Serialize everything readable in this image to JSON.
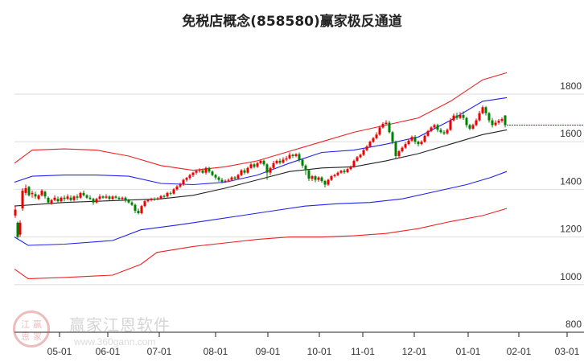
{
  "title": "免税店概念(858580)赢家极反通道",
  "watermark": {
    "brand": "赢家江恩软件",
    "url": "www.360gann.com",
    "logo_chars": [
      "江",
      "赢",
      "恩",
      "家"
    ]
  },
  "colors": {
    "up": "#ee0000",
    "down": "#008000",
    "outer_band": "#ee2222",
    "inner_band": "#2222ee",
    "mid_line": "#222222",
    "grid": "#dddddd",
    "last_price_line": "#008000"
  },
  "chart_data": {
    "type": "candlestick",
    "title": "免税店概念(858580)赢家极反通道",
    "y_axis": {
      "position": "right",
      "ticks": [
        800,
        1000,
        1200,
        1400,
        1600,
        1800
      ],
      "range": [
        800,
        1900
      ]
    },
    "x_axis": {
      "ticks": [
        "05-01",
        "06-01",
        "07-01",
        "08-01",
        "09-01",
        "10-01",
        "11-01",
        "12-01",
        "01-01",
        "02-01",
        "03-01"
      ]
    },
    "grid": true,
    "series": [
      {
        "name": "outer_upper",
        "color": "red",
        "points": [
          [
            18,
            1510
          ],
          [
            40,
            1565
          ],
          [
            80,
            1570
          ],
          [
            120,
            1565
          ],
          [
            160,
            1540
          ],
          [
            200,
            1500
          ],
          [
            240,
            1480
          ],
          [
            280,
            1495
          ],
          [
            320,
            1520
          ],
          [
            360,
            1560
          ],
          [
            400,
            1600
          ],
          [
            440,
            1640
          ],
          [
            480,
            1670
          ],
          [
            520,
            1700
          ],
          [
            560,
            1770
          ],
          [
            600,
            1860
          ],
          [
            630,
            1890
          ]
        ]
      },
      {
        "name": "inner_upper",
        "color": "blue",
        "points": [
          [
            18,
            1430
          ],
          [
            40,
            1455
          ],
          [
            80,
            1460
          ],
          [
            120,
            1460
          ],
          [
            160,
            1455
          ],
          [
            200,
            1425
          ],
          [
            240,
            1420
          ],
          [
            280,
            1430
          ],
          [
            320,
            1460
          ],
          [
            360,
            1510
          ],
          [
            400,
            1555
          ],
          [
            440,
            1565
          ],
          [
            480,
            1590
          ],
          [
            520,
            1620
          ],
          [
            560,
            1690
          ],
          [
            600,
            1770
          ],
          [
            630,
            1785
          ]
        ]
      },
      {
        "name": "middle",
        "color": "black",
        "points": [
          [
            18,
            1330
          ],
          [
            40,
            1335
          ],
          [
            80,
            1345
          ],
          [
            120,
            1350
          ],
          [
            160,
            1355
          ],
          [
            200,
            1360
          ],
          [
            240,
            1375
          ],
          [
            280,
            1405
          ],
          [
            320,
            1440
          ],
          [
            360,
            1475
          ],
          [
            400,
            1490
          ],
          [
            440,
            1495
          ],
          [
            480,
            1520
          ],
          [
            520,
            1550
          ],
          [
            560,
            1590
          ],
          [
            600,
            1630
          ],
          [
            630,
            1650
          ]
        ]
      },
      {
        "name": "inner_lower",
        "color": "blue",
        "points": [
          [
            18,
            1200
          ],
          [
            35,
            1165
          ],
          [
            80,
            1170
          ],
          [
            140,
            1185
          ],
          [
            175,
            1230
          ],
          [
            220,
            1250
          ],
          [
            260,
            1270
          ],
          [
            300,
            1290
          ],
          [
            340,
            1310
          ],
          [
            380,
            1330
          ],
          [
            420,
            1340
          ],
          [
            460,
            1345
          ],
          [
            500,
            1360
          ],
          [
            540,
            1390
          ],
          [
            580,
            1420
          ],
          [
            610,
            1450
          ],
          [
            630,
            1475
          ]
        ]
      },
      {
        "name": "outer_lower",
        "color": "red",
        "points": [
          [
            18,
            1065
          ],
          [
            35,
            1025
          ],
          [
            80,
            1030
          ],
          [
            140,
            1040
          ],
          [
            175,
            1085
          ],
          [
            195,
            1135
          ],
          [
            240,
            1160
          ],
          [
            280,
            1175
          ],
          [
            320,
            1190
          ],
          [
            360,
            1200
          ],
          [
            400,
            1200
          ],
          [
            440,
            1205
          ],
          [
            480,
            1215
          ],
          [
            520,
            1235
          ],
          [
            560,
            1265
          ],
          [
            600,
            1290
          ],
          [
            630,
            1320
          ]
        ]
      }
    ],
    "candles": [
      [
        19,
        1290,
        1315,
        1280,
        1330
      ],
      [
        22,
        1260,
        1200,
        1190,
        1265
      ],
      [
        25,
        1210,
        1260,
        1200,
        1270
      ],
      [
        28,
        1320,
        1395,
        1310,
        1405
      ],
      [
        32,
        1385,
        1405,
        1375,
        1420
      ],
      [
        36,
        1410,
        1375,
        1370,
        1415
      ],
      [
        40,
        1380,
        1385,
        1365,
        1395
      ],
      [
        44,
        1380,
        1370,
        1360,
        1390
      ],
      [
        48,
        1360,
        1375,
        1355,
        1380
      ],
      [
        52,
        1375,
        1395,
        1370,
        1400
      ],
      [
        56,
        1390,
        1370,
        1360,
        1395
      ],
      [
        60,
        1365,
        1345,
        1340,
        1370
      ],
      [
        64,
        1340,
        1355,
        1335,
        1360
      ],
      [
        68,
        1355,
        1365,
        1350,
        1375
      ],
      [
        72,
        1360,
        1350,
        1345,
        1370
      ],
      [
        76,
        1350,
        1365,
        1345,
        1370
      ],
      [
        80,
        1365,
        1360,
        1350,
        1375
      ],
      [
        84,
        1360,
        1370,
        1355,
        1380
      ],
      [
        88,
        1365,
        1355,
        1350,
        1375
      ],
      [
        92,
        1355,
        1370,
        1350,
        1375
      ],
      [
        96,
        1370,
        1365,
        1355,
        1380
      ],
      [
        100,
        1365,
        1385,
        1360,
        1390
      ],
      [
        104,
        1385,
        1375,
        1370,
        1395
      ],
      [
        108,
        1375,
        1365,
        1360,
        1380
      ],
      [
        112,
        1365,
        1360,
        1355,
        1375
      ],
      [
        116,
        1360,
        1345,
        1335,
        1365
      ],
      [
        120,
        1345,
        1360,
        1340,
        1365
      ],
      [
        124,
        1360,
        1370,
        1355,
        1380
      ],
      [
        128,
        1370,
        1365,
        1360,
        1375
      ],
      [
        132,
        1365,
        1370,
        1360,
        1380
      ],
      [
        136,
        1370,
        1360,
        1355,
        1375
      ],
      [
        140,
        1360,
        1370,
        1355,
        1375
      ],
      [
        144,
        1370,
        1365,
        1360,
        1375
      ],
      [
        148,
        1365,
        1360,
        1355,
        1370
      ],
      [
        152,
        1360,
        1365,
        1355,
        1370
      ],
      [
        156,
        1365,
        1355,
        1345,
        1370
      ],
      [
        160,
        1355,
        1345,
        1340,
        1360
      ],
      [
        164,
        1345,
        1335,
        1330,
        1350
      ],
      [
        168,
        1335,
        1310,
        1300,
        1340
      ],
      [
        172,
        1310,
        1300,
        1295,
        1320
      ],
      [
        176,
        1300,
        1330,
        1295,
        1335
      ],
      [
        180,
        1330,
        1350,
        1325,
        1355
      ],
      [
        184,
        1350,
        1355,
        1345,
        1360
      ],
      [
        188,
        1355,
        1360,
        1350,
        1365
      ],
      [
        192,
        1360,
        1358,
        1352,
        1366
      ],
      [
        196,
        1358,
        1362,
        1354,
        1368
      ],
      [
        200,
        1362,
        1372,
        1358,
        1376
      ],
      [
        204,
        1372,
        1370,
        1362,
        1378
      ],
      [
        208,
        1370,
        1385,
        1366,
        1390
      ],
      [
        212,
        1385,
        1382,
        1375,
        1392
      ],
      [
        216,
        1382,
        1400,
        1378,
        1405
      ],
      [
        220,
        1400,
        1412,
        1395,
        1418
      ],
      [
        224,
        1412,
        1420,
        1405,
        1428
      ],
      [
        228,
        1420,
        1440,
        1415,
        1445
      ],
      [
        232,
        1440,
        1448,
        1432,
        1452
      ],
      [
        236,
        1448,
        1460,
        1440,
        1465
      ],
      [
        240,
        1460,
        1470,
        1452,
        1474
      ],
      [
        244,
        1470,
        1478,
        1462,
        1482
      ],
      [
        248,
        1478,
        1480,
        1470,
        1488
      ],
      [
        252,
        1480,
        1470,
        1465,
        1488
      ],
      [
        256,
        1470,
        1490,
        1462,
        1495
      ],
      [
        260,
        1490,
        1475,
        1468,
        1495
      ],
      [
        264,
        1475,
        1460,
        1455,
        1480
      ],
      [
        268,
        1460,
        1450,
        1440,
        1465
      ],
      [
        272,
        1450,
        1440,
        1432,
        1455
      ],
      [
        276,
        1440,
        1432,
        1425,
        1448
      ],
      [
        280,
        1432,
        1436,
        1428,
        1442
      ],
      [
        284,
        1436,
        1440,
        1430,
        1446
      ],
      [
        288,
        1440,
        1450,
        1434,
        1455
      ],
      [
        292,
        1450,
        1445,
        1438,
        1456
      ],
      [
        296,
        1445,
        1460,
        1440,
        1466
      ],
      [
        300,
        1460,
        1480,
        1455,
        1485
      ],
      [
        304,
        1480,
        1470,
        1462,
        1488
      ],
      [
        308,
        1470,
        1490,
        1465,
        1495
      ],
      [
        312,
        1490,
        1505,
        1485,
        1512
      ],
      [
        316,
        1505,
        1495,
        1488,
        1512
      ],
      [
        320,
        1495,
        1510,
        1490,
        1516
      ],
      [
        324,
        1510,
        1520,
        1505,
        1525
      ],
      [
        328,
        1520,
        1505,
        1498,
        1525
      ],
      [
        332,
        1505,
        1470,
        1440,
        1510
      ],
      [
        336,
        1470,
        1490,
        1460,
        1495
      ],
      [
        340,
        1490,
        1510,
        1485,
        1520
      ],
      [
        344,
        1510,
        1520,
        1505,
        1525
      ],
      [
        348,
        1520,
        1512,
        1505,
        1530
      ],
      [
        352,
        1512,
        1525,
        1508,
        1535
      ],
      [
        356,
        1525,
        1530,
        1518,
        1540
      ],
      [
        360,
        1530,
        1545,
        1525,
        1555
      ],
      [
        364,
        1545,
        1540,
        1532,
        1550
      ],
      [
        368,
        1540,
        1548,
        1535,
        1552
      ],
      [
        372,
        1548,
        1525,
        1515,
        1555
      ],
      [
        376,
        1525,
        1500,
        1490,
        1530
      ],
      [
        380,
        1500,
        1480,
        1460,
        1505
      ],
      [
        384,
        1480,
        1445,
        1435,
        1485
      ],
      [
        388,
        1445,
        1455,
        1435,
        1460
      ],
      [
        392,
        1455,
        1440,
        1430,
        1460
      ],
      [
        396,
        1440,
        1450,
        1432,
        1455
      ],
      [
        400,
        1450,
        1435,
        1428,
        1455
      ],
      [
        404,
        1435,
        1420,
        1408,
        1440
      ],
      [
        408,
        1420,
        1440,
        1415,
        1445
      ],
      [
        412,
        1440,
        1455,
        1435,
        1460
      ],
      [
        416,
        1455,
        1460,
        1450,
        1466
      ],
      [
        420,
        1460,
        1470,
        1455,
        1475
      ],
      [
        424,
        1470,
        1478,
        1465,
        1482
      ],
      [
        428,
        1478,
        1472,
        1465,
        1486
      ],
      [
        432,
        1472,
        1485,
        1468,
        1490
      ],
      [
        436,
        1485,
        1495,
        1480,
        1500
      ],
      [
        440,
        1495,
        1520,
        1490,
        1525
      ],
      [
        444,
        1520,
        1535,
        1515,
        1540
      ],
      [
        448,
        1535,
        1545,
        1530,
        1550
      ],
      [
        452,
        1545,
        1565,
        1540,
        1570
      ],
      [
        456,
        1565,
        1580,
        1560,
        1586
      ],
      [
        460,
        1580,
        1600,
        1575,
        1605
      ],
      [
        464,
        1600,
        1615,
        1595,
        1620
      ],
      [
        468,
        1615,
        1630,
        1610,
        1640
      ],
      [
        472,
        1630,
        1660,
        1625,
        1668
      ],
      [
        476,
        1660,
        1675,
        1655,
        1682
      ],
      [
        480,
        1675,
        1680,
        1670,
        1690
      ],
      [
        484,
        1680,
        1640,
        1635,
        1688
      ],
      [
        488,
        1640,
        1600,
        1590,
        1645
      ],
      [
        492,
        1600,
        1540,
        1530,
        1605
      ],
      [
        496,
        1540,
        1560,
        1530,
        1565
      ],
      [
        500,
        1560,
        1575,
        1555,
        1580
      ],
      [
        504,
        1575,
        1590,
        1570,
        1598
      ],
      [
        508,
        1590,
        1605,
        1585,
        1612
      ],
      [
        512,
        1605,
        1620,
        1600,
        1626
      ],
      [
        516,
        1620,
        1600,
        1590,
        1628
      ],
      [
        520,
        1600,
        1590,
        1580,
        1605
      ],
      [
        524,
        1590,
        1600,
        1585,
        1606
      ],
      [
        528,
        1600,
        1625,
        1595,
        1630
      ],
      [
        532,
        1625,
        1645,
        1620,
        1650
      ],
      [
        536,
        1645,
        1660,
        1640,
        1665
      ],
      [
        540,
        1660,
        1670,
        1655,
        1676
      ],
      [
        544,
        1670,
        1650,
        1640,
        1676
      ],
      [
        548,
        1650,
        1640,
        1635,
        1658
      ],
      [
        552,
        1640,
        1635,
        1628,
        1648
      ],
      [
        556,
        1635,
        1650,
        1630,
        1656
      ],
      [
        560,
        1650,
        1690,
        1645,
        1700
      ],
      [
        564,
        1690,
        1710,
        1685,
        1718
      ],
      [
        568,
        1710,
        1700,
        1692,
        1722
      ],
      [
        572,
        1700,
        1712,
        1695,
        1725
      ],
      [
        576,
        1712,
        1700,
        1692,
        1728
      ],
      [
        580,
        1700,
        1670,
        1660,
        1705
      ],
      [
        584,
        1670,
        1655,
        1648,
        1675
      ],
      [
        588,
        1655,
        1670,
        1650,
        1676
      ],
      [
        592,
        1670,
        1690,
        1665,
        1698
      ],
      [
        596,
        1690,
        1720,
        1685,
        1730
      ],
      [
        600,
        1720,
        1745,
        1715,
        1752
      ],
      [
        604,
        1745,
        1720,
        1710,
        1750
      ],
      [
        608,
        1720,
        1690,
        1680,
        1725
      ],
      [
        612,
        1690,
        1670,
        1660,
        1700
      ],
      [
        616,
        1670,
        1680,
        1665,
        1690
      ],
      [
        620,
        1680,
        1688,
        1672,
        1695
      ],
      [
        624,
        1688,
        1695,
        1680,
        1702
      ],
      [
        628,
        1710,
        1670,
        1660,
        1712
      ]
    ],
    "last_price": 1670
  },
  "axes": {
    "y_labels": [
      "1800",
      "1600",
      "1400",
      "1200",
      "1000",
      "800"
    ],
    "x_labels": [
      "05-01",
      "06-01",
      "07-01",
      "08-01",
      "09-01",
      "10-01",
      "11-01",
      "12-01",
      "01-01",
      "02-01",
      "03-01"
    ]
  }
}
